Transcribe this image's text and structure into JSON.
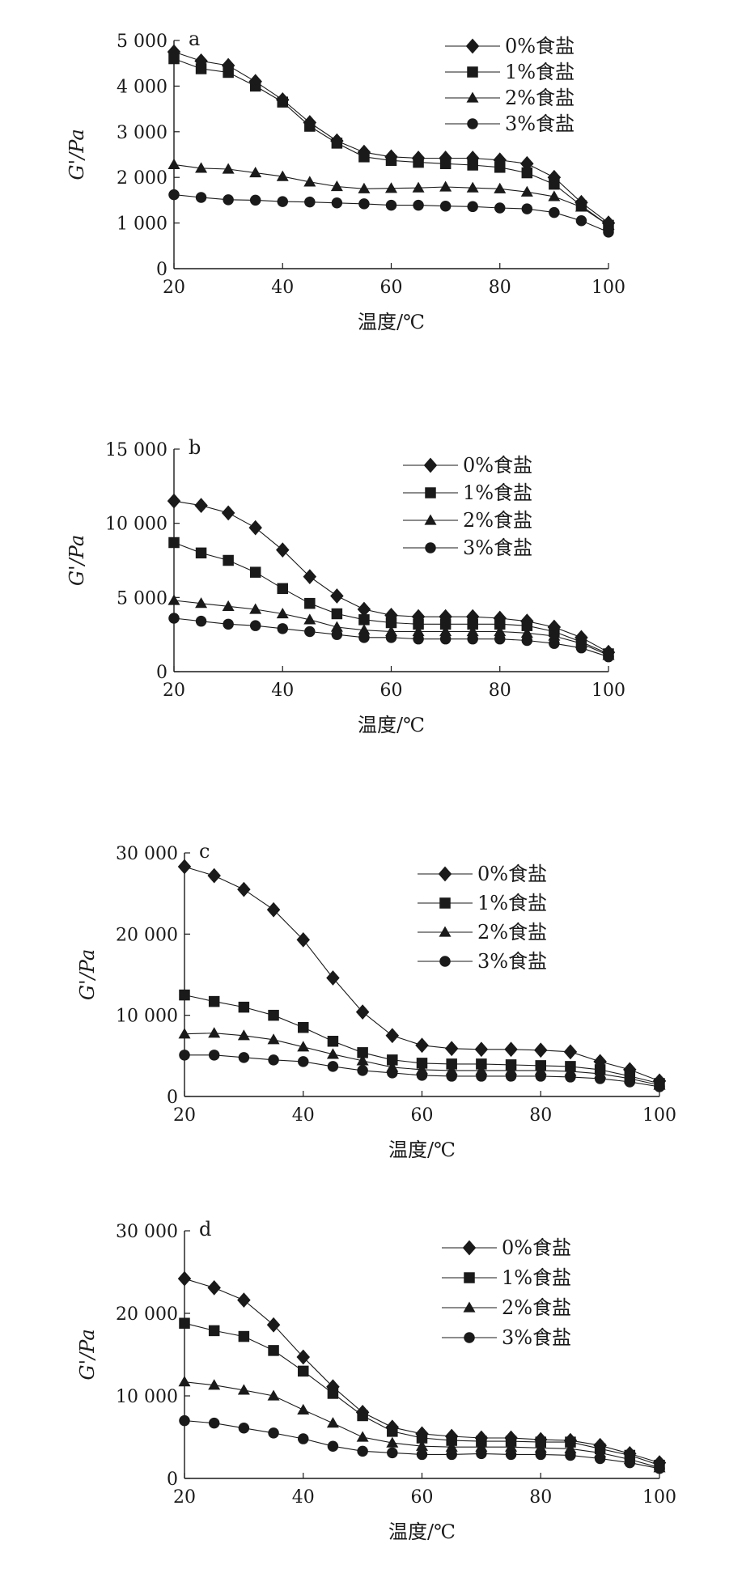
{
  "figure": {
    "colors": {
      "ink": "#1a1a1a",
      "background": "#ffffff"
    },
    "marker_shapes": [
      "diamond",
      "square",
      "triangle",
      "circle"
    ]
  },
  "chart_data": [
    {
      "type": "line",
      "panel_label": "a",
      "xlabel": "温度/℃",
      "ylabel": "G'/Pa",
      "xlim": [
        20,
        100
      ],
      "ylim": [
        0,
        5000
      ],
      "xticks": [
        20,
        40,
        60,
        80,
        100
      ],
      "xtick_labels": [
        "20",
        "40",
        "60",
        "80",
        "100"
      ],
      "yticks": [
        0,
        1000,
        2000,
        3000,
        4000,
        5000
      ],
      "ytick_labels": [
        "0",
        "1 000",
        "2 000",
        "3 000",
        "4 000",
        "5 000"
      ],
      "legend_position": "top-right",
      "x": [
        20,
        25,
        30,
        35,
        40,
        45,
        50,
        55,
        60,
        65,
        70,
        75,
        80,
        85,
        90,
        95,
        100
      ],
      "series": [
        {
          "name": "0%食盐",
          "marker": "diamond",
          "values": [
            4750,
            4550,
            4450,
            4100,
            3700,
            3200,
            2800,
            2550,
            2450,
            2420,
            2420,
            2420,
            2380,
            2300,
            2000,
            1450,
            1000
          ]
        },
        {
          "name": "1%食盐",
          "marker": "square",
          "values": [
            4600,
            4380,
            4300,
            4000,
            3650,
            3120,
            2750,
            2450,
            2370,
            2330,
            2300,
            2270,
            2220,
            2100,
            1850,
            1380,
            950
          ]
        },
        {
          "name": "2%食盐",
          "marker": "triangle",
          "values": [
            2280,
            2200,
            2180,
            2100,
            2020,
            1900,
            1800,
            1750,
            1760,
            1770,
            1790,
            1770,
            1750,
            1680,
            1580,
            1350,
            950
          ]
        },
        {
          "name": "3%食盐",
          "marker": "circle",
          "values": [
            1620,
            1560,
            1510,
            1500,
            1470,
            1460,
            1440,
            1420,
            1390,
            1390,
            1370,
            1360,
            1330,
            1310,
            1230,
            1050,
            800
          ]
        }
      ]
    },
    {
      "type": "line",
      "panel_label": "b",
      "xlabel": "温度/℃",
      "ylabel": "G'/Pa",
      "xlim": [
        20,
        100
      ],
      "ylim": [
        0,
        15000
      ],
      "xticks": [
        20,
        40,
        60,
        80,
        100
      ],
      "xtick_labels": [
        "20",
        "40",
        "60",
        "80",
        "100"
      ],
      "yticks": [
        0,
        5000,
        10000,
        15000
      ],
      "ytick_labels": [
        "0",
        "5 000",
        "10 000",
        "15 000"
      ],
      "legend_position": "top-right",
      "x": [
        20,
        25,
        30,
        35,
        40,
        45,
        50,
        55,
        60,
        65,
        70,
        75,
        80,
        85,
        90,
        95,
        100
      ],
      "series": [
        {
          "name": "0%食盐",
          "marker": "diamond",
          "values": [
            11500,
            11200,
            10700,
            9700,
            8200,
            6400,
            5100,
            4200,
            3800,
            3700,
            3700,
            3700,
            3600,
            3400,
            3000,
            2300,
            1300
          ]
        },
        {
          "name": "1%食盐",
          "marker": "square",
          "values": [
            8700,
            8000,
            7500,
            6700,
            5600,
            4600,
            3900,
            3500,
            3300,
            3200,
            3200,
            3200,
            3200,
            3100,
            2700,
            2000,
            1200
          ]
        },
        {
          "name": "2%食盐",
          "marker": "triangle",
          "values": [
            4800,
            4600,
            4400,
            4200,
            3900,
            3500,
            3000,
            2800,
            2700,
            2700,
            2700,
            2700,
            2700,
            2600,
            2400,
            1900,
            1100
          ]
        },
        {
          "name": "3%食盐",
          "marker": "circle",
          "values": [
            3600,
            3400,
            3200,
            3100,
            2900,
            2700,
            2500,
            2300,
            2300,
            2200,
            2200,
            2200,
            2200,
            2100,
            1900,
            1600,
            1000
          ]
        }
      ]
    },
    {
      "type": "line",
      "panel_label": "c",
      "xlabel": "温度/℃",
      "ylabel": "G'/Pa",
      "xlim": [
        20,
        100
      ],
      "ylim": [
        0,
        30000
      ],
      "xticks": [
        20,
        40,
        60,
        80,
        100
      ],
      "xtick_labels": [
        "20",
        "40",
        "60",
        "80",
        "100"
      ],
      "yticks": [
        0,
        10000,
        20000,
        30000
      ],
      "ytick_labels": [
        "0",
        "10 000",
        "20 000",
        "30 000"
      ],
      "legend_position": "top-right",
      "x": [
        20,
        25,
        30,
        35,
        40,
        45,
        50,
        55,
        60,
        65,
        70,
        75,
        80,
        85,
        90,
        95,
        100
      ],
      "series": [
        {
          "name": "0%食盐",
          "marker": "diamond",
          "values": [
            28300,
            27200,
            25500,
            23000,
            19300,
            14600,
            10400,
            7500,
            6300,
            5900,
            5800,
            5800,
            5700,
            5500,
            4300,
            3300,
            1900
          ]
        },
        {
          "name": "1%食盐",
          "marker": "square",
          "values": [
            12500,
            11700,
            11000,
            10000,
            8500,
            6800,
            5400,
            4500,
            4100,
            4000,
            4000,
            3900,
            3800,
            3700,
            3300,
            2500,
            1600
          ]
        },
        {
          "name": "2%食盐",
          "marker": "triangle",
          "values": [
            7700,
            7800,
            7500,
            7000,
            6100,
            5200,
            4400,
            3600,
            3300,
            3200,
            3200,
            3200,
            3200,
            3100,
            2800,
            2200,
            1400
          ]
        },
        {
          "name": "3%食盐",
          "marker": "circle",
          "values": [
            5100,
            5100,
            4800,
            4500,
            4300,
            3700,
            3200,
            2900,
            2600,
            2500,
            2500,
            2500,
            2500,
            2400,
            2200,
            1800,
            1200
          ]
        }
      ]
    },
    {
      "type": "line",
      "panel_label": "d",
      "xlabel": "温度/℃",
      "ylabel": "G'/Pa",
      "xlim": [
        20,
        100
      ],
      "ylim": [
        0,
        30000
      ],
      "xticks": [
        20,
        40,
        60,
        80,
        100
      ],
      "xtick_labels": [
        "20",
        "40",
        "60",
        "80",
        "100"
      ],
      "yticks": [
        0,
        10000,
        20000,
        30000
      ],
      "ytick_labels": [
        "0",
        "10 000",
        "20 000",
        "30 000"
      ],
      "legend_position": "top-right",
      "x": [
        20,
        25,
        30,
        35,
        40,
        45,
        50,
        55,
        60,
        65,
        70,
        75,
        80,
        85,
        90,
        95,
        100
      ],
      "series": [
        {
          "name": "0%食盐",
          "marker": "diamond",
          "values": [
            24200,
            23100,
            21600,
            18600,
            14700,
            11100,
            8000,
            6200,
            5400,
            5100,
            4900,
            4900,
            4700,
            4600,
            4000,
            3000,
            1900
          ]
        },
        {
          "name": "1%食盐",
          "marker": "square",
          "values": [
            18800,
            17900,
            17200,
            15500,
            13000,
            10300,
            7600,
            5700,
            4900,
            4600,
            4500,
            4500,
            4400,
            4400,
            3600,
            2800,
            1600
          ]
        },
        {
          "name": "2%食盐",
          "marker": "triangle",
          "values": [
            11700,
            11300,
            10700,
            10000,
            8300,
            6700,
            5000,
            4300,
            3900,
            3800,
            3800,
            3800,
            3700,
            3600,
            3100,
            2300,
            1300
          ]
        },
        {
          "name": "3%食盐",
          "marker": "circle",
          "values": [
            7000,
            6700,
            6100,
            5500,
            4800,
            3900,
            3300,
            3100,
            2900,
            2900,
            3000,
            2900,
            2900,
            2800,
            2400,
            1900,
            1200
          ]
        }
      ]
    }
  ]
}
